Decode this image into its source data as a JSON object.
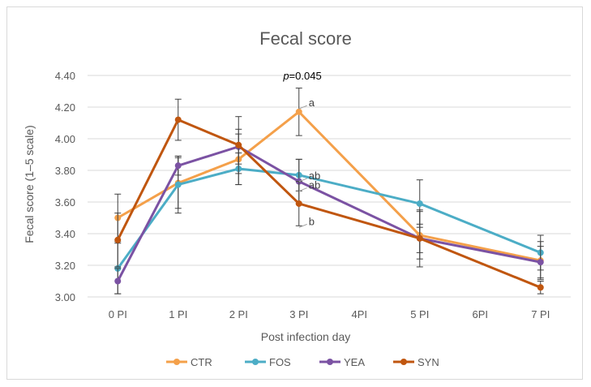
{
  "chart_data": {
    "type": "line",
    "title": "Fecal score",
    "xlabel": "Post infection day",
    "ylabel": "Fecal score (1–5 scale)",
    "ylim": [
      3.0,
      4.4
    ],
    "ytick_step": 0.2,
    "yticks": [
      "3.00",
      "3.20",
      "3.40",
      "3.60",
      "3.80",
      "4.00",
      "4.20",
      "4.40"
    ],
    "categories": [
      "0 PI",
      "1 PI",
      "2 PI",
      "3 PI",
      "4PI",
      "5 PI",
      "6PI",
      "7 PI"
    ],
    "grid": true,
    "legend_position": "bottom",
    "series": [
      {
        "name": "CTR",
        "color": "#f4a04a",
        "values": [
          3.5,
          3.72,
          3.87,
          4.17,
          null,
          3.39,
          null,
          3.23
        ],
        "errors": [
          0.15,
          0.16,
          0.16,
          0.15,
          null,
          0.15,
          null,
          0.12
        ]
      },
      {
        "name": "FOS",
        "color": "#4cadc6",
        "values": [
          3.18,
          3.71,
          3.81,
          3.77,
          null,
          3.59,
          null,
          3.28
        ],
        "errors": [
          0.16,
          0.18,
          0.1,
          0.1,
          null,
          0.15,
          null,
          0.11
        ]
      },
      {
        "name": "YEA",
        "color": "#7b52a3",
        "values": [
          3.1,
          3.83,
          3.95,
          3.73,
          null,
          3.37,
          null,
          3.22
        ],
        "errors": [
          0.08,
          0.06,
          0.11,
          0.14,
          null,
          0.09,
          null,
          0.1
        ]
      },
      {
        "name": "SYN",
        "color": "#c0560f",
        "values": [
          3.36,
          4.12,
          3.96,
          3.59,
          null,
          3.37,
          null,
          3.06
        ],
        "errors": [
          0.17,
          0.13,
          0.18,
          0.14,
          null,
          0.18,
          null,
          0.04
        ]
      }
    ],
    "annotations": {
      "pvalue_italic": "p",
      "pvalue_rest": "=0.045",
      "letters": [
        {
          "text": "a",
          "category": "3 PI",
          "value": 4.23
        },
        {
          "text": "ab",
          "category": "3 PI",
          "value": 3.77
        },
        {
          "text": "ab",
          "category": "3 PI",
          "value": 3.71
        },
        {
          "text": "b",
          "category": "3 PI",
          "value": 3.48
        }
      ]
    }
  }
}
